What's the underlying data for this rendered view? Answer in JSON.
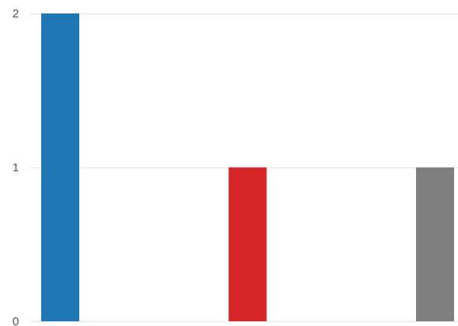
{
  "chart_data": {
    "type": "bar",
    "title": "",
    "xlabel": "",
    "ylabel": "",
    "grid": true,
    "legend": "none",
    "ylim": [
      0,
      2
    ],
    "y_ticks": [
      "0",
      "1",
      "2"
    ],
    "series": [
      {
        "values": [
          2
        ],
        "color": "#1f77b4"
      },
      {
        "values": [
          1
        ],
        "color": "#d62728"
      },
      {
        "values": [
          1
        ],
        "color": "#7f7f7f"
      }
    ]
  }
}
